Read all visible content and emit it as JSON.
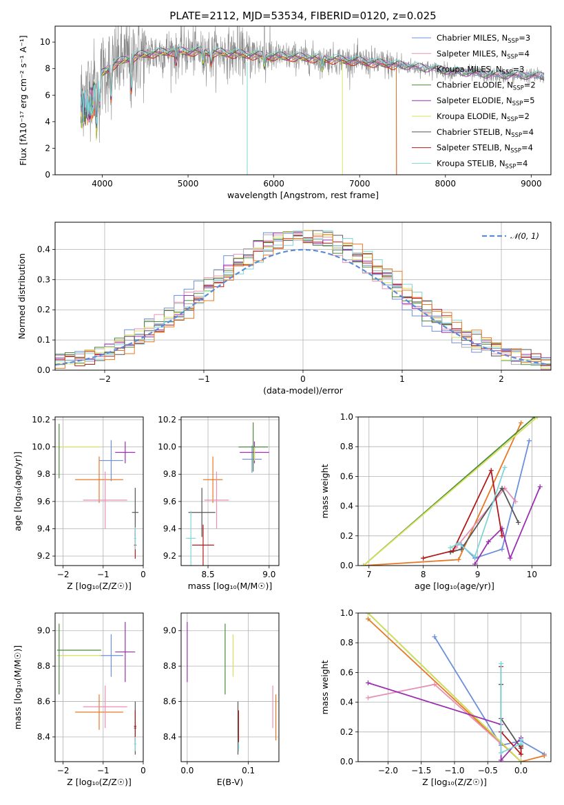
{
  "figure_title": "PLATE=2112, MJD=53534, FIBERID=0120, z=0.025",
  "colors": {
    "Chabrier MILES": "#6b8fd9",
    "Salpeter MILES": "#e88fb4",
    "Kroupa MILES": "#aaaaaa",
    "Chabrier ELODIE": "#4a8a3a",
    "Salpeter ELODIE": "#9a2fb0",
    "Kroupa ELODIE": "#d6e05a",
    "Chabrier STELIB": "#555555",
    "Salpeter STELIB": "#b01818",
    "Kroupa STELIB": "#7ed6d8",
    "extra_orange": "#e87722",
    "gaussian": "#5b8bd8"
  },
  "chart_data": [
    {
      "id": "spectrum",
      "type": "line",
      "xlabel": "wavelength [Angstrom, rest frame]",
      "ylabel": "Flux [fλ10⁻¹⁷ erg cm⁻² s⁻¹ A⁻¹]",
      "xlim": [
        3450,
        9230
      ],
      "ylim": [
        0,
        11.2
      ],
      "xticks": [
        4000,
        5000,
        6000,
        7000,
        8000,
        9000
      ],
      "yticks": [
        0,
        2,
        4,
        6,
        8,
        10
      ],
      "grid": false,
      "legend_position": "top-right",
      "legend": [
        {
          "name": "Chabrier MILES",
          "sup": "N",
          "sub": "SSP",
          "value": "=3"
        },
        {
          "name": "Salpeter MILES",
          "sup": "N",
          "sub": "SSP",
          "value": "=4"
        },
        {
          "name": "Kroupa MILES",
          "sup": "N",
          "sub": "SSP",
          "value": "=3"
        },
        {
          "name": "Chabrier ELODIE",
          "sup": "N",
          "sub": "SSP",
          "value": "=2"
        },
        {
          "name": "Salpeter ELODIE",
          "sup": "N",
          "sub": "SSP",
          "value": "=5"
        },
        {
          "name": "Kroupa ELODIE",
          "sup": "N",
          "sub": "SSP",
          "value": "=2"
        },
        {
          "name": "Chabrier STELIB",
          "sup": "N",
          "sub": "SSP",
          "value": "=4"
        },
        {
          "name": "Salpeter STELIB",
          "sup": "N",
          "sub": "SSP",
          "value": "=4"
        },
        {
          "name": "Kroupa STELIB",
          "sup": "N",
          "sub": "SSP",
          "value": "=4"
        }
      ],
      "continuum": {
        "x": [
          3750,
          3850,
          3950,
          4100,
          4300,
          4500,
          4800,
          5100,
          5400,
          5800,
          6200,
          6600,
          7000,
          7400,
          7800,
          8200,
          8600,
          9000,
          9150
        ],
        "y": [
          6.0,
          6.6,
          7.4,
          8.2,
          8.8,
          9.1,
          9.3,
          9.3,
          9.2,
          9.0,
          8.9,
          8.75,
          8.55,
          8.3,
          8.0,
          7.7,
          7.5,
          7.45,
          7.4
        ]
      },
      "model_ends": {
        "Salpeter STELIB": 7430,
        "extra_orange": 7430,
        "Kroupa ELODIE": 6800
      }
    },
    {
      "id": "residual_hist",
      "type": "histogram",
      "xlabel": "(data-model)/error",
      "ylabel": "Normed distribution",
      "xlim": [
        -2.5,
        2.5
      ],
      "ylim": [
        0,
        0.49
      ],
      "xticks": [
        -2,
        -1,
        0,
        1,
        2
      ],
      "yticks": [
        0.0,
        0.1,
        0.2,
        0.3,
        0.4
      ],
      "grid": true,
      "bin_width": 0.1,
      "legend": "𝒩(0, 1)",
      "legend_position": "top-right"
    },
    {
      "id": "age_vs_Z",
      "type": "errorbar",
      "xlabel": "Z [log₁₀(Z/Z☉)]",
      "ylabel": "age  [log₁₀(age/yr)]",
      "xlim": [
        -2.2,
        0.0
      ],
      "ylim": [
        9.13,
        10.22
      ],
      "xticks": [
        -2,
        -1,
        0
      ],
      "yticks": [
        9.2,
        9.4,
        9.6,
        9.8,
        10.0,
        10.2
      ],
      "points": [
        {
          "c": "Chabrier MILES",
          "x": -0.8,
          "xe": 0.3,
          "y": 9.9,
          "ye": 0.15
        },
        {
          "c": "extra_orange",
          "x": -1.1,
          "xe": 0.6,
          "y": 9.76,
          "ye": 0.17
        },
        {
          "c": "Salpeter MILES",
          "x": -0.95,
          "xe": 0.55,
          "y": 9.61,
          "ye": 0.21
        },
        {
          "c": "Salpeter ELODIE",
          "x": -0.45,
          "xe": 0.25,
          "y": 9.96,
          "ye": 0.08
        },
        {
          "c": "Kroupa ELODIE",
          "x": -1.6,
          "xe": 0.55,
          "y": 10.0,
          "ye": 0.0
        },
        {
          "c": "Chabrier ELODIE",
          "x": -2.1,
          "xe": 0.0,
          "y": 9.97,
          "ye": 0.2
        },
        {
          "c": "Chabrier STELIB",
          "x": -0.2,
          "xe": 0.08,
          "y": 9.52,
          "ye": 0.18
        },
        {
          "c": "Salpeter STELIB",
          "x": -0.2,
          "xe": 0.03,
          "y": 9.28,
          "ye": 0.1
        },
        {
          "c": "Kroupa STELIB",
          "x": -0.2,
          "xe": 0.03,
          "y": 9.33,
          "ye": 0.08
        }
      ]
    },
    {
      "id": "age_vs_mass",
      "type": "errorbar",
      "xlabel": "mass [log₁₀(M/M☉)]",
      "ylabel": "",
      "xlim": [
        8.28,
        9.08
      ],
      "ylim": [
        9.13,
        10.22
      ],
      "xticks": [
        8.5,
        9.0
      ],
      "yticks": [
        9.2,
        9.4,
        9.6,
        9.8,
        10.0,
        10.2
      ],
      "points": [
        {
          "c": "Chabrier MILES",
          "x": 8.86,
          "xe": 0.08,
          "y": 9.91,
          "ye": 0.1
        },
        {
          "c": "extra_orange",
          "x": 8.54,
          "xe": 0.08,
          "y": 9.76,
          "ye": 0.17
        },
        {
          "c": "Salpeter MILES",
          "x": 8.57,
          "xe": 0.1,
          "y": 9.61,
          "ye": 0.21
        },
        {
          "c": "Salpeter ELODIE",
          "x": 8.88,
          "xe": 0.12,
          "y": 9.96,
          "ye": 0.08
        },
        {
          "c": "Kroupa ELODIE",
          "x": 8.88,
          "xe": 0.0,
          "y": 9.95,
          "ye": 0.05
        },
        {
          "c": "Chabrier ELODIE",
          "x": 8.87,
          "xe": 0.12,
          "y": 10.0,
          "ye": 0.18
        },
        {
          "c": "Chabrier STELIB",
          "x": 8.45,
          "xe": 0.11,
          "y": 9.52,
          "ye": 0.18
        },
        {
          "c": "Salpeter STELIB",
          "x": 8.46,
          "xe": 0.09,
          "y": 9.28,
          "ye": 0.15
        },
        {
          "c": "Kroupa STELIB",
          "x": 8.36,
          "xe": 0.04,
          "y": 9.33,
          "ye": 0.2
        }
      ]
    },
    {
      "id": "weight_vs_age",
      "type": "line",
      "xlabel": "age  [log₁₀(age/yr)]",
      "ylabel": "mass weight",
      "xlim": [
        6.8,
        10.35
      ],
      "ylim": [
        0,
        1.0
      ],
      "xticks": [
        7,
        8,
        9,
        10
      ],
      "yticks": [
        0.0,
        0.2,
        0.4,
        0.6,
        0.8,
        1.0
      ],
      "series": [
        {
          "c": "Chabrier MILES",
          "x": [
            8.7,
            8.95,
            9.45,
            9.95
          ],
          "y": [
            0.14,
            0.05,
            0.11,
            0.84
          ]
        },
        {
          "c": "extra_orange",
          "x": [
            6.9,
            8.65,
            9.8
          ],
          "y": [
            0.0,
            0.04,
            0.96
          ]
        },
        {
          "c": "Salpeter MILES",
          "x": [
            8.6,
            9.5,
            9.7
          ],
          "y": [
            0.12,
            0.52,
            0.43
          ]
        },
        {
          "c": "Chabrier ELODIE",
          "x": [
            6.9,
            10.05
          ],
          "y": [
            0.0,
            1.0
          ]
        },
        {
          "c": "Kroupa ELODIE",
          "x": [
            6.9,
            10.1
          ],
          "y": [
            0.0,
            1.0
          ]
        },
        {
          "c": "Salpeter ELODIE",
          "x": [
            8.95,
            9.2,
            9.45,
            9.6,
            10.15
          ],
          "y": [
            0.01,
            0.16,
            0.25,
            0.05,
            0.53
          ]
        },
        {
          "c": "Chabrier STELIB",
          "x": [
            8.5,
            8.7,
            9.45,
            9.75
          ],
          "y": [
            0.09,
            0.11,
            0.52,
            0.29
          ]
        },
        {
          "c": "Salpeter STELIB",
          "x": [
            8.0,
            8.55,
            9.25,
            9.45
          ],
          "y": [
            0.05,
            0.1,
            0.64,
            0.2
          ]
        },
        {
          "c": "Kroupa STELIB",
          "x": [
            8.5,
            8.65,
            8.95,
            9.5
          ],
          "y": [
            0.12,
            0.15,
            0.06,
            0.66
          ]
        }
      ]
    },
    {
      "id": "mass_vs_Z",
      "type": "errorbar",
      "xlabel": "Z [log₁₀(Z/Z☉)]",
      "ylabel": "mass [log₁₀(M/M☉)]",
      "xlim": [
        -2.2,
        0.0
      ],
      "ylim": [
        8.26,
        9.1
      ],
      "xticks": [
        -2,
        -1,
        0
      ],
      "yticks": [
        8.4,
        8.6,
        8.8,
        9.0
      ],
      "points": [
        {
          "c": "Chabrier MILES",
          "x": -0.8,
          "xe": 0.3,
          "y": 8.86,
          "ye": 0.12
        },
        {
          "c": "extra_orange",
          "x": -1.1,
          "xe": 0.6,
          "y": 8.54,
          "ye": 0.1
        },
        {
          "c": "Salpeter MILES",
          "x": -0.95,
          "xe": 0.55,
          "y": 8.57,
          "ye": 0.12
        },
        {
          "c": "Salpeter ELODIE",
          "x": -0.45,
          "xe": 0.25,
          "y": 8.88,
          "ye": 0.17
        },
        {
          "c": "Kroupa ELODIE",
          "x": -1.6,
          "xe": 0.55,
          "y": 8.86,
          "ye": 0.0
        },
        {
          "c": "Chabrier ELODIE",
          "x": -2.1,
          "xe": 0.0,
          "y": 8.84,
          "ye": 0.2
        },
        {
          "c": "Chabrier ELODIE",
          "x": -1.6,
          "xe": 0.55,
          "y": 8.89,
          "ye": 0.0
        },
        {
          "c": "Chabrier STELIB",
          "x": -0.2,
          "xe": 0.03,
          "y": 8.45,
          "ye": 0.15
        },
        {
          "c": "Salpeter STELIB",
          "x": -0.2,
          "xe": 0.03,
          "y": 8.46,
          "ye": 0.09
        },
        {
          "c": "Kroupa STELIB",
          "x": -0.2,
          "xe": 0.03,
          "y": 8.36,
          "ye": 0.04
        }
      ]
    },
    {
      "id": "mass_vs_ebv",
      "type": "errorbar",
      "xlabel": "E(B-V)",
      "ylabel": "",
      "xlim": [
        -0.01,
        0.15
      ],
      "ylim": [
        8.26,
        9.1
      ],
      "xticks": [
        0.0,
        0.1
      ],
      "yticks": [
        8.4,
        8.6,
        8.8,
        9.0
      ],
      "points": [
        {
          "c": "Salpeter ELODIE",
          "x": 0.0,
          "xe": 0,
          "y": 8.88,
          "ye": 0.17
        },
        {
          "c": "Chabrier ELODIE",
          "x": 0.062,
          "xe": 0,
          "y": 8.84,
          "ye": 0.2
        },
        {
          "c": "Kroupa ELODIE",
          "x": 0.075,
          "xe": 0,
          "y": 8.86,
          "ye": 0.12
        },
        {
          "c": "Chabrier STELIB",
          "x": 0.083,
          "xe": 0,
          "y": 8.45,
          "ye": 0.15
        },
        {
          "c": "Kroupa STELIB",
          "x": 0.084,
          "xe": 0,
          "y": 8.36,
          "ye": 0.04
        },
        {
          "c": "Salpeter STELIB",
          "x": 0.084,
          "xe": 0,
          "y": 8.46,
          "ye": 0.09
        },
        {
          "c": "Salpeter MILES",
          "x": 0.14,
          "xe": 0,
          "y": 8.57,
          "ye": 0.12
        },
        {
          "c": "extra_orange",
          "x": 0.145,
          "xe": 0,
          "y": 8.51,
          "ye": 0.13
        }
      ]
    },
    {
      "id": "weight_vs_Z",
      "type": "line",
      "xlabel": "Z [log₁₀(Z/Z☉)]",
      "ylabel": "mass weight",
      "xlim": [
        -2.45,
        0.45
      ],
      "ylim": [
        0,
        1.0
      ],
      "xticks": [
        -2.0,
        -1.5,
        -1.0,
        -0.5,
        0.0
      ],
      "yticks": [
        0.0,
        0.2,
        0.4,
        0.6,
        0.8,
        1.0
      ],
      "series": [
        {
          "c": "Chabrier MILES",
          "x": [
            -1.3,
            -0.3,
            0.0,
            0.35
          ],
          "y": [
            0.84,
            0.11,
            0.14,
            0.05
          ]
        },
        {
          "c": "extra_orange",
          "x": [
            -2.3,
            0.0,
            0.35
          ],
          "y": [
            0.96,
            0.0,
            0.04
          ]
        },
        {
          "c": "Salpeter MILES",
          "x": [
            -2.3,
            -1.3,
            -0.3
          ],
          "y": [
            0.43,
            0.52,
            0.12
          ]
        },
        {
          "c": "Chabrier ELODIE",
          "x": [
            -2.3,
            0.0
          ],
          "y": [
            1.0,
            0.0
          ]
        },
        {
          "c": "Kroupa ELODIE",
          "x": [
            -2.3,
            0.0
          ],
          "y": [
            1.0,
            0.0
          ]
        },
        {
          "c": "Salpeter ELODIE",
          "x": [
            -2.3,
            -0.3,
            -0.3,
            0.0
          ],
          "y": [
            0.53,
            0.25,
            0.01,
            0.16
          ]
        },
        {
          "c": "Chabrier STELIB",
          "x": [
            -0.3,
            -0.3,
            0.0,
            0.0
          ],
          "y": [
            0.52,
            0.29,
            0.09,
            0.11
          ]
        },
        {
          "c": "Salpeter STELIB",
          "x": [
            -0.3,
            -0.3,
            0.0,
            0.0
          ],
          "y": [
            0.64,
            0.2,
            0.05,
            0.1
          ]
        },
        {
          "c": "Kroupa STELIB",
          "x": [
            -0.3,
            -0.3,
            0.0,
            0.0
          ],
          "y": [
            0.66,
            0.06,
            0.12,
            0.15
          ]
        }
      ]
    }
  ]
}
